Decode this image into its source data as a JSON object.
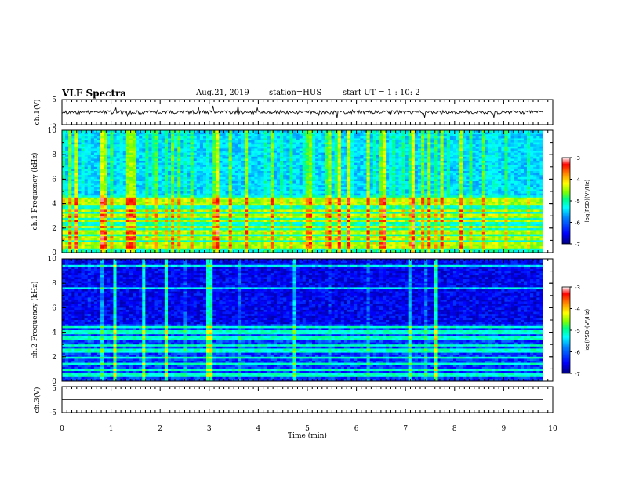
{
  "header": {
    "title": "VLF Spectra",
    "date": "Aug.21, 2019",
    "station": "station=HUS",
    "start": "start  UT =   1 : 10: 2"
  },
  "colors": {
    "cmap": [
      "#000080",
      "#0000ff",
      "#0080ff",
      "#00ffff",
      "#00ff80",
      "#80ff00",
      "#ffff00",
      "#ff8000",
      "#ff0000",
      "#ffffff"
    ],
    "trace": "#000000"
  },
  "chart_data": [
    {
      "type": "line",
      "panel": "ch1-waveform",
      "ylabel": "ch.1(V)",
      "ylim": [
        -5,
        5
      ],
      "yticks": [
        "5",
        "-5"
      ],
      "x_range_min": [
        0,
        9.8
      ],
      "level_v": 0
    },
    {
      "type": "heatmap",
      "panel": "ch1-spectrogram",
      "ylabel": "ch.1\nFrequency (kHz)",
      "ylim": [
        0,
        10
      ],
      "yticks": [
        "0",
        "2",
        "4",
        "6",
        "8",
        "10"
      ],
      "x_range_min": [
        0,
        9.8
      ],
      "intensity": "high",
      "strong_bands_khz": [
        0.4,
        0.7,
        1.2,
        1.7,
        2.1,
        2.6,
        3.0,
        3.4,
        4.0,
        4.3
      ],
      "colorbar": {
        "label": "log(PSD)(V²/Hz)",
        "ticks": [
          "-3",
          "-4",
          "-5",
          "-6",
          "-7"
        ],
        "range": [
          -7,
          -3
        ]
      }
    },
    {
      "type": "heatmap",
      "panel": "ch2-spectrogram",
      "ylabel": "ch.2\nFrequency (kHz)",
      "ylim": [
        0,
        10
      ],
      "yticks": [
        "0",
        "2",
        "4",
        "6",
        "8",
        "10"
      ],
      "x_range_min": [
        0,
        9.8
      ],
      "intensity": "low",
      "strong_bands_khz": [
        0.5,
        0.9,
        1.4,
        1.9,
        2.5,
        2.9,
        3.5,
        4.0,
        4.4,
        7.6,
        9.4
      ],
      "colorbar": {
        "label": "log(PSD)(V²/Hz)",
        "ticks": [
          "-3",
          "-4",
          "-5",
          "-6",
          "-7"
        ],
        "range": [
          -7,
          -3
        ]
      }
    },
    {
      "type": "line",
      "panel": "ch3-waveform",
      "ylabel": "ch.3(V)",
      "ylim": [
        -5,
        5
      ],
      "yticks": [
        "5",
        "-5"
      ],
      "x_range_min": [
        0,
        9.8
      ],
      "level_v": 0
    }
  ],
  "xaxis": {
    "label": "Time  (min)",
    "ticks": [
      "0",
      "1",
      "2",
      "3",
      "4",
      "5",
      "6",
      "7",
      "8",
      "9",
      "10"
    ],
    "range": [
      0,
      10
    ]
  }
}
